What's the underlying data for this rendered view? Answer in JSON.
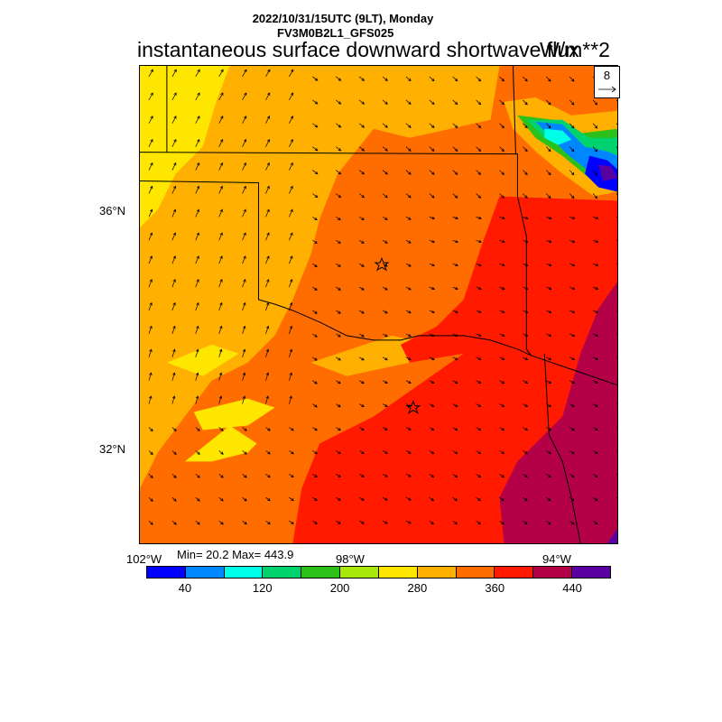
{
  "header": {
    "line1": "2022/10/31/15UTC (9LT), Monday",
    "line2": "FV3M0B2L1_GFS025",
    "title": "instantaneous surface downward shortwave flux",
    "units": "W/m**2"
  },
  "vector_key": {
    "value": "8"
  },
  "axes": {
    "lat_labels": [
      "36°N",
      "32°N"
    ],
    "lon_labels": [
      "102°W",
      "98°W",
      "94°W"
    ]
  },
  "stats": {
    "text": "Min= 20.2 Max= 443.9"
  },
  "colorbar": {
    "colors": [
      "#0000ff",
      "#0087ff",
      "#00ffe8",
      "#00d26e",
      "#2cc01a",
      "#a8e80a",
      "#ffe600",
      "#ffb000",
      "#ff6c00",
      "#ff1a00",
      "#b40046",
      "#5a00a0"
    ],
    "labels": [
      "40",
      "120",
      "200",
      "280",
      "360",
      "440"
    ]
  },
  "map": {
    "markers": [
      "star",
      "star"
    ]
  }
}
